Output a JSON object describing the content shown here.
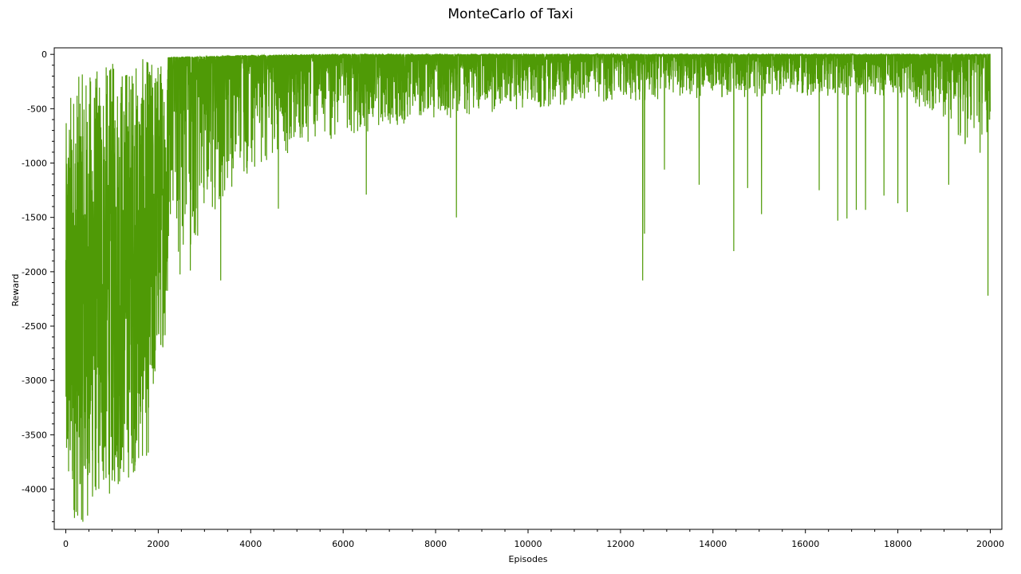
{
  "colors": {
    "series": "#4f9a06",
    "axis": "#000000",
    "background": "#ffffff"
  },
  "chart_data": {
    "type": "line",
    "title": "MonteCarlo of Taxi",
    "xlabel": "Episodes",
    "ylabel": "Reward",
    "xlim": [
      -250,
      20250
    ],
    "ylim": [
      -4370,
      60
    ],
    "grid": false,
    "legend": "none",
    "xticks": [
      0,
      2000,
      4000,
      6000,
      8000,
      10000,
      12000,
      14000,
      16000,
      18000,
      20000
    ],
    "yticks": [
      0,
      -500,
      -1000,
      -1500,
      -2000,
      -2500,
      -3000,
      -3500,
      -4000
    ],
    "series": [
      {
        "color": "#4f9a06",
        "n_episodes": 20000,
        "upper_envelope": [
          [
            0,
            -650
          ],
          [
            100,
            -300
          ],
          [
            200,
            -200
          ],
          [
            500,
            -150
          ],
          [
            800,
            -100
          ],
          [
            1000,
            -60
          ],
          [
            1500,
            -40
          ],
          [
            2000,
            -30
          ],
          [
            3000,
            -20
          ],
          [
            4000,
            -10
          ],
          [
            6000,
            0
          ],
          [
            20000,
            0
          ]
        ],
        "lower_envelope": [
          [
            0,
            -4250
          ],
          [
            400,
            -4330
          ],
          [
            700,
            -4100
          ],
          [
            1000,
            -4050
          ],
          [
            1300,
            -3950
          ],
          [
            1600,
            -3800
          ],
          [
            1800,
            -3700
          ],
          [
            1900,
            -3200
          ],
          [
            2000,
            -2800
          ],
          [
            2200,
            -2600
          ],
          [
            2600,
            -2100
          ],
          [
            3000,
            -1800
          ],
          [
            3500,
            -1500
          ],
          [
            4000,
            -1050
          ],
          [
            5000,
            -900
          ],
          [
            6000,
            -750
          ],
          [
            8000,
            -600
          ],
          [
            10000,
            -500
          ],
          [
            12000,
            -430
          ],
          [
            14000,
            -400
          ],
          [
            16000,
            -380
          ],
          [
            18000,
            -400
          ],
          [
            19000,
            -600
          ],
          [
            19500,
            -900
          ],
          [
            20000,
            -1000
          ]
        ],
        "spikes": [
          [
            3350,
            -2080
          ],
          [
            4600,
            -1420
          ],
          [
            6500,
            -1290
          ],
          [
            8450,
            -1500
          ],
          [
            12480,
            -2080
          ],
          [
            12520,
            -1650
          ],
          [
            12950,
            -1060
          ],
          [
            13700,
            -1200
          ],
          [
            14450,
            -1810
          ],
          [
            14750,
            -1230
          ],
          [
            15050,
            -1470
          ],
          [
            16300,
            -1250
          ],
          [
            16700,
            -1530
          ],
          [
            16900,
            -1510
          ],
          [
            17100,
            -1430
          ],
          [
            17300,
            -1430
          ],
          [
            17700,
            -1300
          ],
          [
            18000,
            -1370
          ],
          [
            18200,
            -1450
          ],
          [
            19100,
            -1200
          ],
          [
            19950,
            -2220
          ]
        ]
      }
    ]
  }
}
